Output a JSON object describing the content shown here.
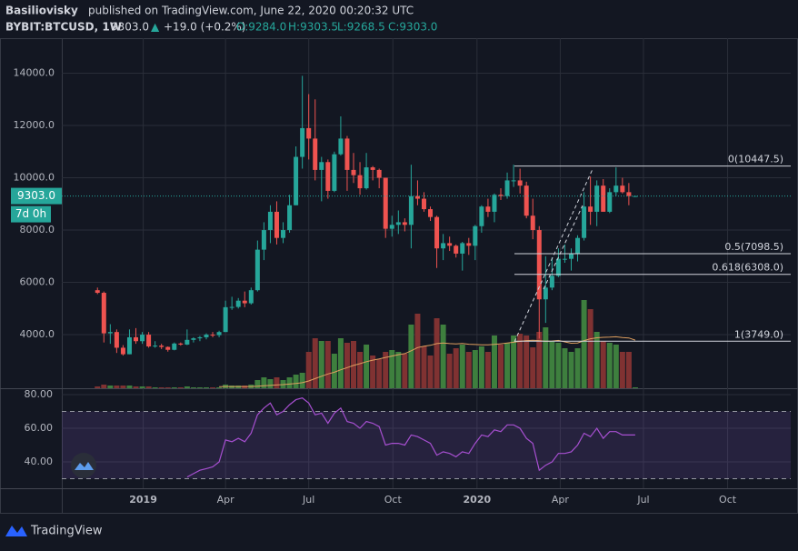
{
  "header": {
    "author": "Basiliovisky",
    "published": "published on TradingView.com, June 22, 2020 00:20:32 UTC",
    "symbol": "BYBIT:BTCUSD, 1W",
    "last": "9303.0",
    "arrow": "▲",
    "change": "+19.0 (+0.2%)",
    "ohlc": [
      "O:9284.0",
      "H:9303.5",
      "L:9268.5",
      "C:9303.0"
    ]
  },
  "footer": {
    "brand": "TradingView"
  },
  "chart_data": {
    "type": "candlestick",
    "x": [
      "2018-11-12",
      "2018-11-19",
      "2018-11-26",
      "2018-12-03",
      "2018-12-10",
      "2018-12-17",
      "2018-12-24",
      "2018-12-31",
      "2019-01-07",
      "2019-01-14",
      "2019-01-21",
      "2019-01-28",
      "2019-02-04",
      "2019-02-11",
      "2019-02-18",
      "2019-02-25",
      "2019-03-04",
      "2019-03-11",
      "2019-03-18",
      "2019-03-25",
      "2019-04-01",
      "2019-04-08",
      "2019-04-15",
      "2019-04-22",
      "2019-04-29",
      "2019-05-06",
      "2019-05-13",
      "2019-05-20",
      "2019-05-27",
      "2019-06-03",
      "2019-06-10",
      "2019-06-17",
      "2019-06-24",
      "2019-07-01",
      "2019-07-08",
      "2019-07-15",
      "2019-07-22",
      "2019-07-29",
      "2019-08-05",
      "2019-08-12",
      "2019-08-19",
      "2019-08-26",
      "2019-09-02",
      "2019-09-09",
      "2019-09-16",
      "2019-09-23",
      "2019-09-30",
      "2019-10-07",
      "2019-10-14",
      "2019-10-21",
      "2019-10-28",
      "2019-11-04",
      "2019-11-11",
      "2019-11-18",
      "2019-11-25",
      "2019-12-02",
      "2019-12-09",
      "2019-12-16",
      "2019-12-23",
      "2019-12-30",
      "2020-01-06",
      "2020-01-13",
      "2020-01-20",
      "2020-01-27",
      "2020-02-03",
      "2020-02-10",
      "2020-02-17",
      "2020-02-24",
      "2020-03-02",
      "2020-03-09",
      "2020-03-16",
      "2020-03-23",
      "2020-03-30",
      "2020-04-06",
      "2020-04-13",
      "2020-04-20",
      "2020-04-27",
      "2020-05-04",
      "2020-05-11",
      "2020-05-18",
      "2020-05-25",
      "2020-06-01",
      "2020-06-08",
      "2020-06-15",
      "2020-06-22"
    ],
    "open": [
      5700,
      5600,
      4050,
      4100,
      3500,
      3250,
      3900,
      3750,
      4000,
      3550,
      3580,
      3530,
      3420,
      3660,
      3620,
      3800,
      3860,
      3900,
      4000,
      3980,
      4100,
      5050,
      5060,
      5300,
      5200,
      5700,
      7250,
      8000,
      8700,
      7700,
      8000,
      8950,
      10800,
      11900,
      11500,
      10300,
      10600,
      9500,
      10900,
      11500,
      10300,
      10100,
      9600,
      10400,
      10300,
      10000,
      8050,
      8200,
      8300,
      8200,
      9300,
      9200,
      8800,
      8500,
      7300,
      7500,
      7400,
      7100,
      7500,
      7400,
      8150,
      8900,
      8700,
      9350,
      9300,
      9900,
      9900,
      9700,
      8550,
      8000,
      5350,
      5800,
      6250,
      6900,
      6900,
      7100,
      7700,
      8900,
      8700,
      9700,
      8700,
      9450,
      9700,
      9450,
      9284
    ],
    "high": [
      5800,
      5650,
      4400,
      4200,
      3600,
      4200,
      4250,
      4100,
      4100,
      3750,
      3650,
      3550,
      3700,
      3700,
      4200,
      3900,
      3950,
      4050,
      4100,
      4150,
      5300,
      5450,
      5400,
      5650,
      5800,
      7600,
      8300,
      8950,
      9100,
      8300,
      9350,
      11200,
      13900,
      13200,
      13000,
      10800,
      10700,
      11000,
      12350,
      11600,
      10950,
      10600,
      10950,
      10450,
      10350,
      10000,
      8550,
      8750,
      8450,
      10500,
      9900,
      9450,
      8900,
      8550,
      7850,
      7750,
      7450,
      7550,
      7700,
      8200,
      8950,
      9200,
      9400,
      9600,
      10200,
      10500,
      10350,
      9850,
      9200,
      8150,
      7000,
      6950,
      7300,
      7450,
      7300,
      7800,
      9450,
      10050,
      9900,
      9950,
      9600,
      10400,
      10000,
      9800,
      9303.5
    ],
    "low": [
      5550,
      3700,
      3650,
      3300,
      3200,
      3250,
      3650,
      3650,
      3500,
      3500,
      3450,
      3350,
      3400,
      3580,
      3600,
      3700,
      3750,
      3820,
      3900,
      3900,
      4100,
      4950,
      5000,
      5050,
      5150,
      5650,
      6850,
      7500,
      7450,
      7500,
      7900,
      8950,
      10350,
      10700,
      9900,
      9100,
      9200,
      9450,
      10850,
      9500,
      9800,
      9350,
      9550,
      9900,
      9600,
      7700,
      7750,
      7850,
      7950,
      7300,
      8950,
      8700,
      8350,
      6550,
      6850,
      7200,
      6950,
      6450,
      7050,
      6850,
      7900,
      8500,
      8300,
      9150,
      9200,
      9650,
      9400,
      8450,
      7650,
      3850,
      4450,
      5700,
      6200,
      6750,
      6450,
      6800,
      7600,
      8200,
      8150,
      8800,
      8650,
      9300,
      9400,
      8950,
      9268.5
    ],
    "close": [
      5600,
      4050,
      4100,
      3500,
      3250,
      3900,
      3750,
      4000,
      3550,
      3580,
      3530,
      3420,
      3660,
      3620,
      3800,
      3860,
      3900,
      4000,
      3980,
      4100,
      5050,
      5060,
      5300,
      5200,
      5700,
      7250,
      8000,
      8700,
      7700,
      8000,
      8950,
      10800,
      11900,
      11500,
      10300,
      10600,
      9500,
      10900,
      11500,
      10300,
      10100,
      9600,
      10400,
      10300,
      10000,
      8050,
      8200,
      8300,
      8200,
      9300,
      9200,
      8800,
      8500,
      7300,
      7500,
      7400,
      7100,
      7500,
      7400,
      8150,
      8900,
      8700,
      9350,
      9300,
      9900,
      9900,
      9700,
      8550,
      8000,
      5350,
      5800,
      6250,
      6900,
      6900,
      7100,
      7700,
      8900,
      8700,
      9700,
      8700,
      9450,
      9700,
      9450,
      9300,
      9303
    ],
    "volume": [
      2,
      4,
      3,
      3,
      3,
      3,
      2,
      2,
      2,
      1,
      1,
      1,
      1,
      1,
      2,
      1,
      1,
      1,
      1,
      1,
      4,
      3,
      3,
      3,
      4,
      9,
      12,
      10,
      12,
      9,
      12,
      15,
      17,
      40,
      55,
      52,
      52,
      38,
      55,
      50,
      52,
      40,
      48,
      36,
      32,
      40,
      42,
      40,
      38,
      70,
      82,
      46,
      36,
      77,
      70,
      38,
      44,
      48,
      40,
      42,
      46,
      40,
      58,
      48,
      50,
      58,
      60,
      58,
      45,
      62,
      67,
      52,
      50,
      44,
      40,
      44,
      97,
      87,
      62,
      52,
      50,
      48,
      40,
      40,
      1
    ],
    "rsi": [
      null,
      null,
      null,
      null,
      null,
      null,
      null,
      null,
      null,
      null,
      null,
      null,
      null,
      null,
      31,
      33,
      35,
      36,
      37,
      40,
      53,
      52,
      54,
      52,
      57,
      68,
      72,
      75,
      68,
      70,
      74,
      77,
      78,
      75,
      68,
      69,
      63,
      69,
      72,
      64,
      63,
      60,
      64,
      63,
      61,
      50,
      51,
      51,
      50,
      56,
      55,
      53,
      51,
      44,
      46,
      45,
      43,
      46,
      45,
      51,
      56,
      55,
      59,
      58,
      62,
      62,
      60,
      54,
      51,
      35,
      38,
      40,
      45,
      45,
      46,
      50,
      57,
      55,
      60,
      54,
      58,
      58,
      56,
      56,
      56
    ],
    "xlim": [
      "2018-10-04",
      "2020-12-09"
    ],
    "xticks": [
      {
        "value": "2019-01-01",
        "label": "2019"
      },
      {
        "value": "2019-04-01",
        "label": "Apr"
      },
      {
        "value": "2019-07-01",
        "label": "Jul"
      },
      {
        "value": "2019-10-01",
        "label": "Oct"
      },
      {
        "value": "2020-01-01",
        "label": "2020"
      },
      {
        "value": "2020-04-01",
        "label": "Apr"
      },
      {
        "value": "2020-07-01",
        "label": "Jul"
      },
      {
        "value": "2020-10-01",
        "label": "Oct"
      }
    ],
    "ylim": [
      1950,
      15340
    ],
    "yticks": [
      {
        "value": 4000,
        "label": "4000.0"
      },
      {
        "value": 6000,
        "label": "6000.0"
      },
      {
        "value": 8000,
        "label": "8000.0"
      },
      {
        "value": 10000,
        "label": "10000.0"
      },
      {
        "value": 12000,
        "label": "12000.0"
      },
      {
        "value": 14000,
        "label": "14000.0"
      }
    ],
    "rsi_lim": [
      24.3,
      83.8
    ],
    "rsi_ticks": [
      {
        "value": 40,
        "label": "40.00"
      },
      {
        "value": 60,
        "label": "60.00"
      },
      {
        "value": 80,
        "label": "80.00"
      }
    ],
    "rsi_band": [
      30,
      70
    ],
    "fib": [
      {
        "value": 10447.5,
        "label": "0(10447.5)"
      },
      {
        "value": 7098.5,
        "label": "0.5(7098.5)"
      },
      {
        "value": 6308.0,
        "label": "0.618(6308.0)"
      },
      {
        "value": 3749.0,
        "label": "1(3749.0)"
      }
    ],
    "last_price": {
      "value": 9303,
      "label": "9303.0"
    },
    "countdown": "7d 0h",
    "up_color": "#26a69a",
    "down_color": "#ef5350",
    "volume_up_color": "#3e7f3e",
    "volume_down_color": "#803232",
    "rsi_color": "#a64fd0",
    "grid": true
  }
}
